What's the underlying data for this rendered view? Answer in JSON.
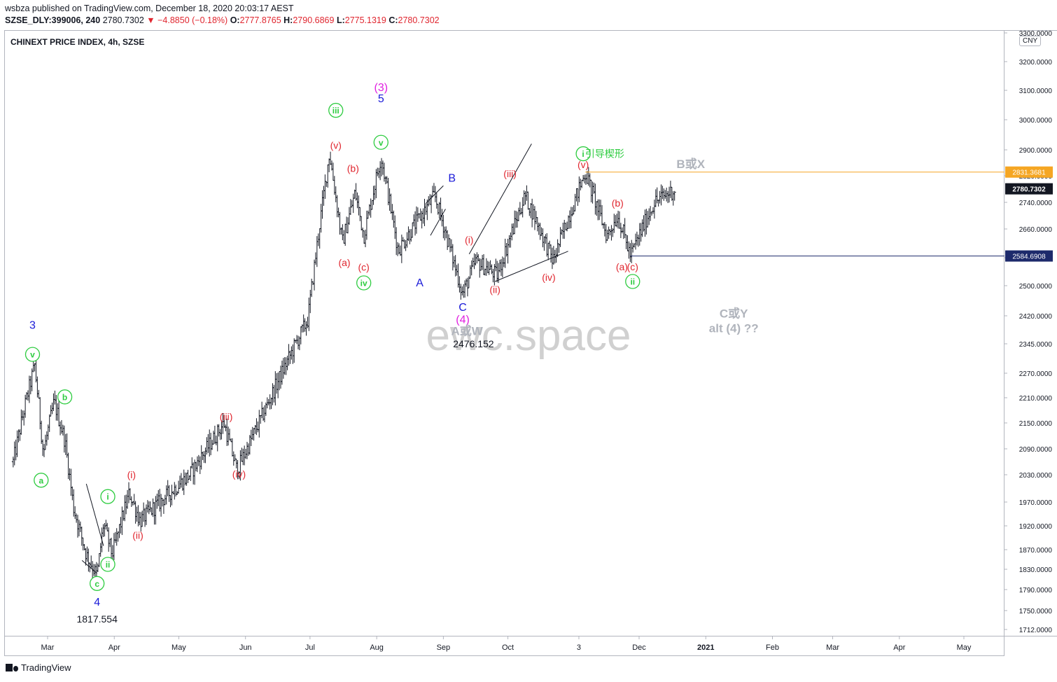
{
  "header": {
    "publish_line": "wsbza published on TradingView.com, December 18, 2020 20:03:17 AEST",
    "symbol": "SZSE_DLY:399006, 240",
    "last": "2780.7302",
    "change": "−4.8850 (−0.18%)",
    "o_label": "O:",
    "o_value": "2777.8765",
    "h_label": "H:",
    "h_value": "2790.6869",
    "l_label": "L:",
    "l_value": "2775.1319",
    "c_label": "C:",
    "c_value": "2780.7302"
  },
  "currency": "CNY",
  "footer": {
    "brand": "TradingView"
  },
  "colors": {
    "ohlc": "#131722",
    "wave_green": "#2ecc40",
    "wave_red": "#e0262f",
    "wave_blue": "#1a1ad8",
    "wave_magenta": "#e020e0",
    "gray": "#b0b4bc",
    "orange": "#f5a623",
    "navy": "#1d2a6b"
  },
  "chart_data": {
    "type": "ohlc",
    "title": "CHINEXT PRICE INDEX, 4h, SZSE",
    "watermark": "ewc.space",
    "y_ticks": [
      1712,
      1750,
      1790,
      1830,
      1870,
      1920,
      1970,
      2030,
      2090,
      2150,
      2210,
      2270,
      2345,
      2420,
      2500,
      2580,
      2660,
      2740,
      2820,
      2900,
      3000,
      3100,
      3200,
      3300
    ],
    "y_tick_labels": [
      "1712.0000",
      "1750.0000",
      "1790.0000",
      "1830.0000",
      "1870.0000",
      "1920.0000",
      "1970.0000",
      "2030.0000",
      "2090.0000",
      "2150.0000",
      "2210.0000",
      "2270.0000",
      "2345.0000",
      "2420.0000",
      "2500.0000",
      "2580.0000",
      "2660.0000",
      "2740.0000",
      "2820.0000",
      "2900.0000",
      "3000.0000",
      "3100.0000",
      "3200.0000",
      "3300.0000"
    ],
    "x_ticks": [
      {
        "label": "Mar",
        "date": "2020-03-01"
      },
      {
        "label": "Apr",
        "date": "2020-04-01"
      },
      {
        "label": "May",
        "date": "2020-05-01"
      },
      {
        "label": "Jun",
        "date": "2020-06-01"
      },
      {
        "label": "Jul",
        "date": "2020-07-01"
      },
      {
        "label": "Aug",
        "date": "2020-08-01"
      },
      {
        "label": "Sep",
        "date": "2020-09-01"
      },
      {
        "label": "Oct",
        "date": "2020-10-01"
      },
      {
        "label": "3",
        "date": "2020-11-03"
      },
      {
        "label": "Dec",
        "date": "2020-12-01"
      },
      {
        "label": "2021",
        "date": "2021-01-01"
      },
      {
        "label": "Feb",
        "date": "2021-02-01"
      },
      {
        "label": "Mar",
        "date": "2021-03-01"
      },
      {
        "label": "Apr",
        "date": "2021-04-01"
      },
      {
        "label": "May",
        "date": "2021-05-01"
      }
    ],
    "price_path": [
      {
        "date": "2020-02-14",
        "price": 2060
      },
      {
        "date": "2020-02-19",
        "price": 2180
      },
      {
        "date": "2020-02-24",
        "price": 2290
      },
      {
        "date": "2020-02-28",
        "price": 2080
      },
      {
        "date": "2020-03-04",
        "price": 2200
      },
      {
        "date": "2020-03-09",
        "price": 2110
      },
      {
        "date": "2020-03-13",
        "price": 1960
      },
      {
        "date": "2020-03-19",
        "price": 1860
      },
      {
        "date": "2020-03-24",
        "price": 1817.554
      },
      {
        "date": "2020-03-27",
        "price": 1925
      },
      {
        "date": "2020-03-31",
        "price": 1860
      },
      {
        "date": "2020-04-08",
        "price": 1990
      },
      {
        "date": "2020-04-13",
        "price": 1930
      },
      {
        "date": "2020-05-06",
        "price": 2030
      },
      {
        "date": "2020-05-22",
        "price": 2150
      },
      {
        "date": "2020-05-28",
        "price": 2040
      },
      {
        "date": "2020-06-10",
        "price": 2180
      },
      {
        "date": "2020-06-30",
        "price": 2410
      },
      {
        "date": "2020-07-10",
        "price": 2890
      },
      {
        "date": "2020-07-16",
        "price": 2620
      },
      {
        "date": "2020-07-22",
        "price": 2770
      },
      {
        "date": "2020-07-26",
        "price": 2640
      },
      {
        "date": "2020-08-03",
        "price": 2880
      },
      {
        "date": "2020-08-11",
        "price": 2600
      },
      {
        "date": "2020-08-28",
        "price": 2760
      },
      {
        "date": "2020-09-10",
        "price": 2476.152
      },
      {
        "date": "2020-09-16",
        "price": 2570
      },
      {
        "date": "2020-09-26",
        "price": 2530
      },
      {
        "date": "2020-10-09",
        "price": 2760
      },
      {
        "date": "2020-10-22",
        "price": 2570
      },
      {
        "date": "2020-11-06",
        "price": 2831.3681
      },
      {
        "date": "2020-11-16",
        "price": 2640
      },
      {
        "date": "2020-11-21",
        "price": 2700
      },
      {
        "date": "2020-11-27",
        "price": 2584.6908
      },
      {
        "date": "2020-12-08",
        "price": 2740
      },
      {
        "date": "2020-12-18",
        "price": 2780.7302
      }
    ],
    "horizontal_lines": [
      {
        "price": 2831.3681,
        "label": "2831.3681",
        "color": "orange",
        "start": "2020-11-06"
      },
      {
        "price": 2584.6908,
        "label": "2584.6908",
        "color": "navy",
        "start": "2020-11-27"
      }
    ],
    "last_price_label": "2780.7302",
    "annotations": [
      {
        "text": "3",
        "color": "blue",
        "date": "2020-02-23",
        "price": 2395
      },
      {
        "text": "v",
        "color": "green",
        "circle": true,
        "date": "2020-02-23",
        "price": 2318
      },
      {
        "text": "b",
        "color": "green",
        "circle": true,
        "date": "2020-03-09",
        "price": 2212
      },
      {
        "text": "a",
        "color": "green",
        "circle": true,
        "date": "2020-02-27",
        "price": 2018
      },
      {
        "text": "i",
        "color": "green",
        "circle": true,
        "date": "2020-03-29",
        "price": 1982
      },
      {
        "text": "ii",
        "color": "green",
        "circle": true,
        "date": "2020-03-29",
        "price": 1840
      },
      {
        "text": "c",
        "color": "green",
        "circle": true,
        "date": "2020-03-24",
        "price": 1802
      },
      {
        "text": "4",
        "color": "blue",
        "date": "2020-03-24",
        "price": 1766
      },
      {
        "text": "1817.554",
        "color": "black",
        "date": "2020-03-24",
        "price": 1733
      },
      {
        "text": "(i)",
        "color": "red",
        "date": "2020-04-09",
        "price": 2030
      },
      {
        "text": "(ii)",
        "color": "red",
        "date": "2020-04-12",
        "price": 1900
      },
      {
        "text": "(iii)",
        "color": "red",
        "date": "2020-05-23",
        "price": 2165
      },
      {
        "text": "(iv)",
        "color": "red",
        "date": "2020-05-29",
        "price": 2032
      },
      {
        "text": "iii",
        "color": "green",
        "circle": true,
        "date": "2020-07-13",
        "price": 3032
      },
      {
        "text": "(v)",
        "color": "red",
        "date": "2020-07-13",
        "price": 2915
      },
      {
        "text": "(b)",
        "color": "red",
        "date": "2020-07-21",
        "price": 2843
      },
      {
        "text": "(a)",
        "color": "red",
        "date": "2020-07-17",
        "price": 2566
      },
      {
        "text": "(c)",
        "color": "red",
        "date": "2020-07-26",
        "price": 2553
      },
      {
        "text": "iv",
        "color": "green",
        "circle": true,
        "date": "2020-07-26",
        "price": 2508
      },
      {
        "text": "(3)",
        "color": "magenta",
        "date": "2020-08-03",
        "price": 3110
      },
      {
        "text": "5",
        "color": "blue",
        "date": "2020-08-03",
        "price": 3072
      },
      {
        "text": "v",
        "color": "green",
        "circle": true,
        "date": "2020-08-03",
        "price": 2925
      },
      {
        "text": "A",
        "color": "blue",
        "date": "2020-08-21",
        "price": 2508
      },
      {
        "text": "B",
        "color": "blue",
        "date": "2020-09-05",
        "price": 2813
      },
      {
        "text": "(i)",
        "color": "red",
        "date": "2020-09-13",
        "price": 2630
      },
      {
        "text": "C",
        "color": "blue",
        "date": "2020-09-10",
        "price": 2442
      },
      {
        "text": "(4)",
        "color": "magenta",
        "date": "2020-09-10",
        "price": 2410
      },
      {
        "text": "A或W",
        "color": "gray",
        "date": "2020-09-12",
        "price": 2378
      },
      {
        "text": "2476.152",
        "color": "black",
        "date": "2020-09-15",
        "price": 2345
      },
      {
        "text": "(ii)",
        "color": "red",
        "date": "2020-09-25",
        "price": 2490
      },
      {
        "text": "(iii)",
        "color": "red",
        "date": "2020-10-02",
        "price": 2827
      },
      {
        "text": "(iv)",
        "color": "red",
        "date": "2020-10-20",
        "price": 2524
      },
      {
        "text": "i",
        "color": "green",
        "circle": true,
        "date": "2020-11-05",
        "price": 2888
      },
      {
        "text": "引导楔形",
        "color": "green",
        "date": "2020-11-15",
        "price": 2888
      },
      {
        "text": "(v)",
        "color": "red",
        "date": "2020-11-05",
        "price": 2855
      },
      {
        "text": "B或X",
        "color": "gray",
        "date": "2020-12-25",
        "price": 2855
      },
      {
        "text": "(b)",
        "color": "red",
        "date": "2020-11-21",
        "price": 2738
      },
      {
        "text": "(a)",
        "color": "red",
        "date": "2020-11-23",
        "price": 2554
      },
      {
        "text": "(c)",
        "color": "red",
        "date": "2020-11-28",
        "price": 2554
      },
      {
        "text": "ii",
        "color": "green",
        "circle": true,
        "date": "2020-11-28",
        "price": 2512
      },
      {
        "text": "C或Y",
        "color": "gray",
        "date": "2021-01-14",
        "price": 2425
      },
      {
        "text": "alt (4) ??",
        "color": "gray",
        "date": "2021-01-14",
        "price": 2385
      }
    ],
    "trendlines": [
      {
        "from": {
          "date": "2020-03-19",
          "price": 2010
        },
        "to": {
          "date": "2020-03-27",
          "price": 1878
        }
      },
      {
        "from": {
          "date": "2020-03-17",
          "price": 1848
        },
        "to": {
          "date": "2020-03-24",
          "price": 1822
        }
      },
      {
        "from": {
          "date": "2020-08-24",
          "price": 2738
        },
        "to": {
          "date": "2020-09-01",
          "price": 2790
        }
      },
      {
        "from": {
          "date": "2020-08-26",
          "price": 2642
        },
        "to": {
          "date": "2020-09-02",
          "price": 2720
        }
      },
      {
        "from": {
          "date": "2020-09-13",
          "price": 2590
        },
        "to": {
          "date": "2020-10-12",
          "price": 2920
        }
      },
      {
        "from": {
          "date": "2020-09-25",
          "price": 2512
        },
        "to": {
          "date": "2020-10-29",
          "price": 2598
        }
      }
    ]
  }
}
